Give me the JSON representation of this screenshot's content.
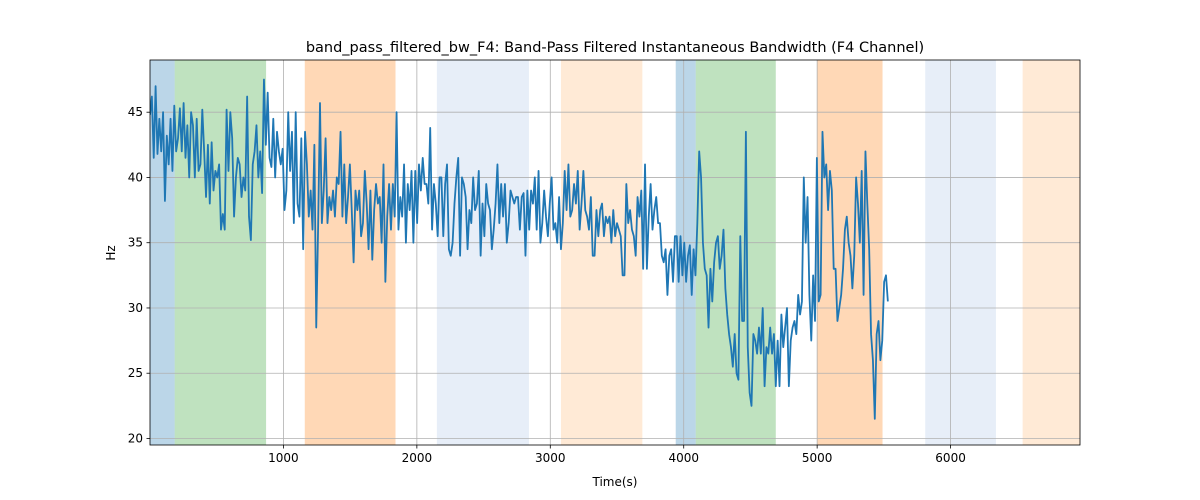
{
  "chart_data": {
    "type": "line",
    "title": "band_pass_filtered_bw_F4: Band-Pass Filtered Instantaneous Bandwidth (F4 Channel)",
    "xlabel": "Time(s)",
    "ylabel": "Hz",
    "xlim": [
      0,
      6970
    ],
    "ylim": [
      19.5,
      49
    ],
    "xticks": [
      1000,
      2000,
      3000,
      4000,
      5000,
      6000
    ],
    "yticks": [
      20,
      25,
      30,
      35,
      40,
      45
    ],
    "grid": true,
    "line_color": "#1f77b4",
    "bands": [
      {
        "x0": 0,
        "x1": 185,
        "color": "#1f77b4",
        "opacity": 0.3
      },
      {
        "x0": 185,
        "x1": 870,
        "color": "#2ca02c",
        "opacity": 0.3
      },
      {
        "x0": 1160,
        "x1": 1840,
        "color": "#ff7f0e",
        "opacity": 0.3
      },
      {
        "x0": 2150,
        "x1": 2840,
        "color": "#aec7e8",
        "opacity": 0.3
      },
      {
        "x0": 3080,
        "x1": 3690,
        "color": "#ffbb78",
        "opacity": 0.3
      },
      {
        "x0": 3940,
        "x1": 4090,
        "color": "#1f77b4",
        "opacity": 0.3
      },
      {
        "x0": 4090,
        "x1": 4690,
        "color": "#2ca02c",
        "opacity": 0.3
      },
      {
        "x0": 5000,
        "x1": 5490,
        "color": "#ff7f0e",
        "opacity": 0.3
      },
      {
        "x0": 5810,
        "x1": 6340,
        "color": "#aec7e8",
        "opacity": 0.3
      },
      {
        "x0": 6540,
        "x1": 6970,
        "color": "#ffbb78",
        "opacity": 0.3
      }
    ],
    "series": [
      {
        "x_start": 0,
        "x_step": 14,
        "values": [
          44.8,
          46.2,
          41.5,
          47.0,
          41.8,
          44.5,
          42.0,
          45.0,
          38.2,
          43.2,
          41.0,
          44.5,
          40.5,
          45.5,
          42.0,
          43.0,
          45.3,
          42.0,
          45.7,
          41.5,
          44.0,
          40.0,
          45.0,
          44.0,
          40.0,
          44.5,
          40.5,
          41.0,
          45.2,
          42.0,
          38.5,
          42.5,
          38.0,
          42.7,
          39.0,
          40.5,
          40.0,
          41.0,
          36.0,
          37.2,
          36.0,
          45.2,
          40.5,
          45.0,
          43.0,
          37.0,
          40.0,
          41.5,
          41.0,
          38.5,
          40.0,
          39.0,
          46.2,
          37.0,
          35.2,
          41.0,
          42.0,
          44.0,
          40.0,
          42.0,
          38.8,
          47.5,
          42.5,
          46.5,
          41.5,
          40.8,
          44.5,
          40.0,
          43.5,
          42.0,
          41.0,
          42.2,
          37.5,
          39.0,
          45.0,
          40.5,
          43.5,
          36.5,
          45.0,
          38.0,
          37.0,
          43.0,
          34.5,
          43.5,
          41.0,
          37.0,
          39.0,
          36.0,
          42.5,
          28.5,
          36.2,
          45.7,
          36.5,
          39.0,
          43.0,
          36.5,
          38.5,
          37.5,
          39.0,
          37.0,
          40.0,
          39.5,
          43.5,
          37.0,
          41.0,
          36.5,
          38.5,
          41.0,
          37.5,
          33.5,
          39.0,
          37.5,
          39.0,
          35.5,
          36.5,
          40.5,
          38.0,
          34.5,
          39.0,
          33.7,
          37.5,
          39.5,
          38.0,
          38.5,
          35.0,
          41.0,
          32.0,
          37.0,
          39.5,
          36.0,
          39.5,
          37.0,
          45.0,
          36.0,
          38.5,
          37.0,
          41.0,
          35.0,
          39.5,
          37.5,
          40.5,
          35.0,
          40.5,
          36.5,
          41.0,
          39.0,
          41.5,
          39.5,
          39.5,
          38.0,
          43.8,
          36.0,
          39.5,
          38.0,
          35.5,
          40.0,
          40.0,
          35.5,
          39.5,
          41.0,
          34.5,
          34.0,
          35.0,
          38.0,
          40.0,
          41.5,
          34.0,
          40.0,
          39.5,
          38.5,
          34.5,
          37.5,
          36.5,
          40.0,
          37.5,
          38.0,
          40.5,
          34.0,
          38.0,
          35.5,
          39.5,
          38.0,
          37.5,
          34.5,
          36.0,
          38.0,
          41.0,
          36.5,
          39.5,
          37.0,
          39.5,
          35.0,
          36.5,
          39.0,
          38.5,
          38.0,
          38.5,
          38.5,
          36.0,
          38.5,
          38.8,
          34.0,
          39.0,
          36.0,
          39.0,
          38.0,
          40.0,
          36.0,
          40.5,
          35.0,
          36.5,
          39.0,
          37.0,
          35.5,
          38.0,
          40.0,
          36.0,
          36.5,
          35.0,
          38.5,
          34.5,
          36.5,
          40.5,
          37.5,
          41.0,
          37.0,
          37.5,
          39.5,
          38.0,
          40.5,
          36.0,
          38.0,
          40.5,
          37.5,
          37.0,
          36.0,
          38.5,
          34.0,
          34.0,
          37.5,
          35.5,
          37.5,
          38.0,
          35.5,
          37.0,
          36.5,
          37.0,
          35.0,
          37.5,
          35.5,
          36.5,
          36.0,
          35.5,
          32.5,
          32.5,
          39.5,
          36.5,
          37.5,
          36.0,
          35.5,
          34.0,
          38.5,
          37.0,
          39.0,
          33.0,
          41.0,
          33.0,
          37.0,
          39.5,
          36.0,
          37.5,
          38.5,
          36.5,
          36.5,
          34.0,
          33.5,
          34.5,
          31.0,
          34.0,
          34.5,
          32.0,
          35.5,
          35.5,
          32.0,
          35.5,
          32.5,
          35.0,
          32.0,
          34.0,
          34.8,
          31.0,
          34.5,
          32.5,
          36.5,
          42.0,
          40.0,
          35.0,
          33.0,
          32.5,
          28.5,
          33.0,
          30.5,
          33.5,
          35.0,
          35.5,
          33.0,
          34.0,
          36.0,
          31.5,
          29.5,
          28.0,
          27.0,
          25.5,
          28.0,
          25.0,
          24.5,
          35.5,
          29.0,
          29.0,
          43.5,
          27.0,
          23.5,
          22.5,
          28.0,
          27.5,
          26.5,
          28.5,
          26.5,
          30.0,
          24.0,
          27.0,
          26.5,
          28.5,
          26.5,
          28.0,
          24.0,
          27.5,
          24.0,
          29.5,
          27.0,
          28.5,
          30.0,
          24.0,
          27.5,
          28.5,
          29.0,
          28.0,
          31.0,
          29.5,
          30.5,
          40.0,
          35.0,
          38.5,
          31.0,
          27.5,
          32.5,
          29.0,
          41.5,
          30.5,
          31.0,
          43.5,
          40.0,
          41.0,
          37.5,
          40.5,
          39.0,
          33.0,
          33.0,
          29.0,
          30.0,
          31.0,
          33.0,
          36.0,
          37.0,
          35.0,
          34.0,
          31.5,
          34.0,
          40.0,
          38.0,
          35.0,
          40.5,
          31.0,
          42.0,
          38.0,
          34.5,
          28.0,
          26.0,
          21.5,
          28.0,
          29.0,
          26.0,
          27.5,
          32.0,
          32.5,
          30.5
        ]
      }
    ]
  }
}
